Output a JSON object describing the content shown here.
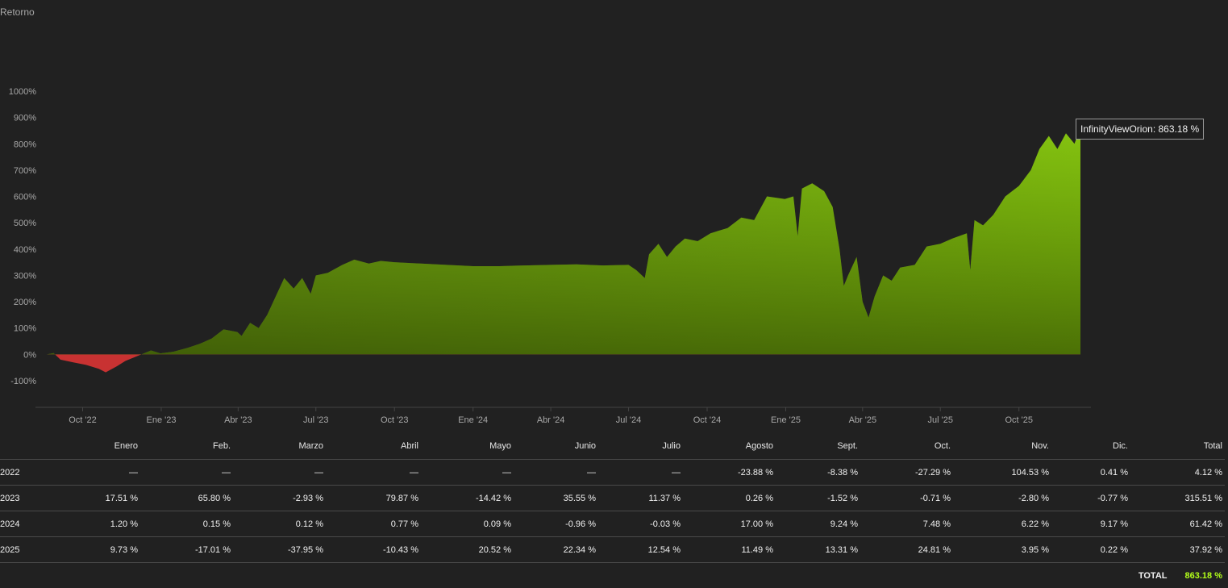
{
  "chart_data": {
    "type": "area",
    "title": "Retorno",
    "y_axis": {
      "ticks": [
        "1000%",
        "900%",
        "800%",
        "700%",
        "600%",
        "500%",
        "400%",
        "300%",
        "200%",
        "100%",
        "0%",
        "-100%"
      ],
      "range": [
        -120,
        1010
      ],
      "unit": "%"
    },
    "x_axis": {
      "ticks": [
        "Oct '22",
        "Ene '23",
        "Abr '23",
        "Jul '23",
        "Oct '23",
        "Ene '24",
        "Abr '24",
        "Jul '24",
        "Oct '24",
        "Ene '25",
        "Abr '25",
        "Jul '25",
        "Oct '25"
      ],
      "range": [
        "2022-08-01",
        "2025-12-25"
      ]
    },
    "series": [
      {
        "name": "InfinityViewOrion",
        "positive_color": "#9be80c",
        "negative_color": "#c83232",
        "points": [
          [
            "2022-08-20",
            0
          ],
          [
            "2022-08-28",
            5
          ],
          [
            "2022-09-05",
            -20
          ],
          [
            "2022-09-20",
            -30
          ],
          [
            "2022-10-05",
            -40
          ],
          [
            "2022-10-20",
            -55
          ],
          [
            "2022-10-28",
            -68
          ],
          [
            "2022-11-10",
            -45
          ],
          [
            "2022-11-20",
            -25
          ],
          [
            "2022-12-05",
            -5
          ],
          [
            "2022-12-20",
            15
          ],
          [
            "2022-12-31",
            4
          ],
          [
            "2023-01-15",
            10
          ],
          [
            "2023-02-01",
            25
          ],
          [
            "2023-02-15",
            40
          ],
          [
            "2023-03-01",
            60
          ],
          [
            "2023-03-15",
            95
          ],
          [
            "2023-03-31",
            85
          ],
          [
            "2023-04-05",
            70
          ],
          [
            "2023-04-15",
            120
          ],
          [
            "2023-04-25",
            100
          ],
          [
            "2023-05-05",
            150
          ],
          [
            "2023-05-15",
            220
          ],
          [
            "2023-05-25",
            290
          ],
          [
            "2023-06-05",
            250
          ],
          [
            "2023-06-15",
            290
          ],
          [
            "2023-06-25",
            230
          ],
          [
            "2023-07-01",
            300
          ],
          [
            "2023-07-15",
            310
          ],
          [
            "2023-08-01",
            340
          ],
          [
            "2023-08-15",
            360
          ],
          [
            "2023-09-01",
            345
          ],
          [
            "2023-09-15",
            355
          ],
          [
            "2023-10-01",
            350
          ],
          [
            "2023-11-01",
            345
          ],
          [
            "2023-12-01",
            340
          ],
          [
            "2024-01-01",
            335
          ],
          [
            "2024-02-01",
            335
          ],
          [
            "2024-03-01",
            338
          ],
          [
            "2024-04-01",
            340
          ],
          [
            "2024-05-01",
            342
          ],
          [
            "2024-06-01",
            338
          ],
          [
            "2024-07-01",
            340
          ],
          [
            "2024-07-10",
            320
          ],
          [
            "2024-07-20",
            290
          ],
          [
            "2024-07-25",
            380
          ],
          [
            "2024-08-05",
            420
          ],
          [
            "2024-08-15",
            370
          ],
          [
            "2024-08-25",
            410
          ],
          [
            "2024-09-05",
            440
          ],
          [
            "2024-09-20",
            430
          ],
          [
            "2024-10-05",
            460
          ],
          [
            "2024-10-25",
            480
          ],
          [
            "2024-11-10",
            520
          ],
          [
            "2024-11-25",
            510
          ],
          [
            "2024-12-10",
            600
          ],
          [
            "2024-12-31",
            590
          ],
          [
            "2025-01-10",
            600
          ],
          [
            "2025-01-15",
            450
          ],
          [
            "2025-01-20",
            630
          ],
          [
            "2025-02-01",
            650
          ],
          [
            "2025-02-15",
            620
          ],
          [
            "2025-02-25",
            560
          ],
          [
            "2025-03-05",
            400
          ],
          [
            "2025-03-10",
            260
          ],
          [
            "2025-03-15",
            300
          ],
          [
            "2025-03-25",
            370
          ],
          [
            "2025-04-01",
            200
          ],
          [
            "2025-04-08",
            140
          ],
          [
            "2025-04-15",
            220
          ],
          [
            "2025-04-25",
            300
          ],
          [
            "2025-05-05",
            280
          ],
          [
            "2025-05-15",
            330
          ],
          [
            "2025-06-01",
            340
          ],
          [
            "2025-06-15",
            410
          ],
          [
            "2025-07-01",
            420
          ],
          [
            "2025-07-15",
            440
          ],
          [
            "2025-08-01",
            460
          ],
          [
            "2025-08-05",
            320
          ],
          [
            "2025-08-10",
            510
          ],
          [
            "2025-08-20",
            490
          ],
          [
            "2025-09-01",
            530
          ],
          [
            "2025-09-15",
            600
          ],
          [
            "2025-10-01",
            640
          ],
          [
            "2025-10-15",
            700
          ],
          [
            "2025-10-25",
            780
          ],
          [
            "2025-11-05",
            830
          ],
          [
            "2025-11-15",
            780
          ],
          [
            "2025-11-25",
            840
          ],
          [
            "2025-12-05",
            800
          ],
          [
            "2025-12-12",
            863.18
          ]
        ]
      }
    ],
    "tooltip": "InfinityViewOrion: 863.18 %",
    "grid": false,
    "legend": "none"
  },
  "table": {
    "headers": [
      "",
      "Enero",
      "Feb.",
      "Marzo",
      "Abril",
      "Mayo",
      "Junio",
      "Julio",
      "Agosto",
      "Sept.",
      "Oct.",
      "Nov.",
      "Dic.",
      "Total"
    ],
    "rows": [
      [
        "2022",
        "—",
        "—",
        "—",
        "—",
        "—",
        "—",
        "—",
        "-23.88 %",
        "-8.38 %",
        "-27.29 %",
        "104.53 %",
        "0.41 %",
        "4.12 %"
      ],
      [
        "2023",
        "17.51 %",
        "65.80 %",
        "-2.93 %",
        "79.87 %",
        "-14.42 %",
        "35.55 %",
        "11.37 %",
        "0.26 %",
        "-1.52 %",
        "-0.71 %",
        "-2.80 %",
        "-0.77 %",
        "315.51 %"
      ],
      [
        "2024",
        "1.20 %",
        "0.15 %",
        "0.12 %",
        "0.77 %",
        "0.09 %",
        "-0.96 %",
        "-0.03 %",
        "17.00 %",
        "9.24 %",
        "7.48 %",
        "6.22 %",
        "9.17 %",
        "61.42 %"
      ],
      [
        "2025",
        "9.73 %",
        "-17.01 %",
        "-37.95 %",
        "-10.43 %",
        "20.52 %",
        "22.34 %",
        "12.54 %",
        "11.49 %",
        "13.31 %",
        "24.81 %",
        "3.95 %",
        "0.22 %",
        "37.92 %"
      ]
    ],
    "total_label": "TOTAL",
    "total_value": "863.18 %"
  },
  "colors": {
    "background": "#212121",
    "positive": "#b3ff1a",
    "negative": "#ff4d4d",
    "axis_text": "#a8a8a8"
  }
}
